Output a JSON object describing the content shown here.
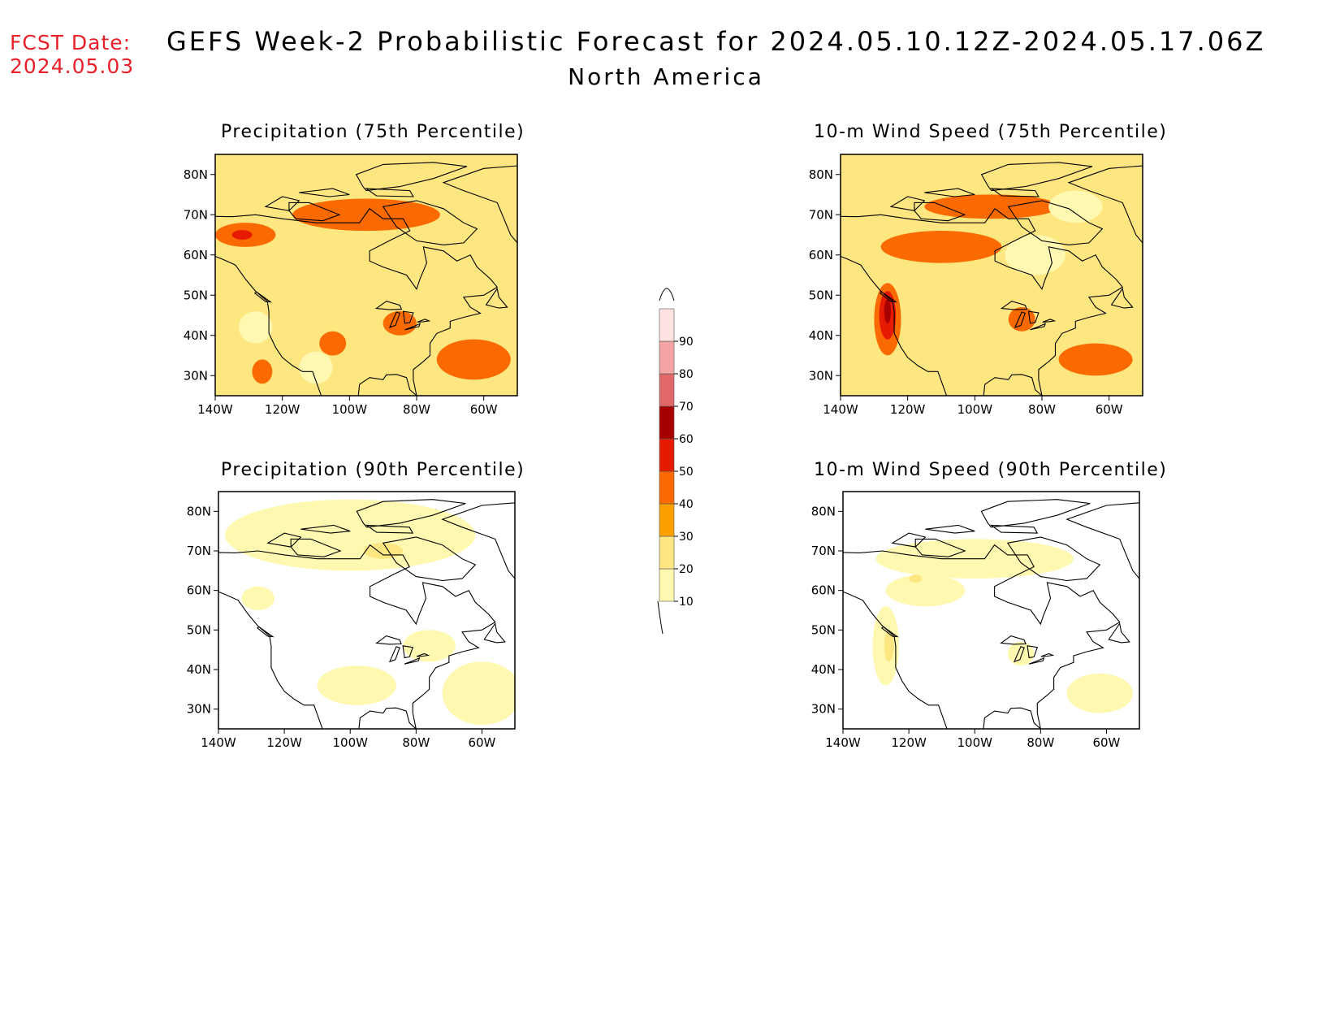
{
  "header": {
    "fcst_label": "FCST Date:",
    "fcst_date": "2024.05.03",
    "title": "GEFS Week-2 Probabilistic Forecast for 2024.05.10.12Z-2024.05.17.06Z",
    "subtitle": "North America"
  },
  "axes": {
    "lat_labels": [
      "30N",
      "40N",
      "50N",
      "60N",
      "70N",
      "80N"
    ],
    "lat_values": [
      30,
      40,
      50,
      60,
      70,
      80
    ],
    "lon_labels": [
      "140W",
      "120W",
      "100W",
      "80W",
      "60W"
    ],
    "lon_values": [
      -140,
      -120,
      -100,
      -80,
      -60
    ],
    "lat_range": [
      25,
      85
    ],
    "lon_range": [
      -140,
      -50
    ]
  },
  "panels": [
    {
      "title": "Precipitation (75th Percentile)",
      "variable": "Precipitation",
      "percentile": "75th",
      "dominant_level": 20,
      "features": [
        {
          "level": 40,
          "lon": -131,
          "lat": 65,
          "rlon": 9,
          "rlat": 3
        },
        {
          "level": 40,
          "lon": -95,
          "lat": 70,
          "rlon": 22,
          "rlat": 4
        },
        {
          "level": 40,
          "lon": -63,
          "lat": 34,
          "rlon": 11,
          "rlat": 5
        },
        {
          "level": 40,
          "lon": -105,
          "lat": 38,
          "rlon": 4,
          "rlat": 3
        },
        {
          "level": 40,
          "lon": -126,
          "lat": 31,
          "rlon": 3,
          "rlat": 3
        },
        {
          "level": 40,
          "lon": -85,
          "lat": 43,
          "rlon": 5,
          "rlat": 3
        },
        {
          "level": 50,
          "lon": -132,
          "lat": 65,
          "rlon": 3,
          "rlat": 1.2
        },
        {
          "level": 10,
          "lon": -128,
          "lat": 42,
          "rlon": 5,
          "rlat": 4
        },
        {
          "level": 10,
          "lon": -110,
          "lat": 32,
          "rlon": 5,
          "rlat": 4
        }
      ]
    },
    {
      "title": "10-m Wind Speed (75th Percentile)",
      "variable": "10-m Wind Speed",
      "percentile": "75th",
      "dominant_level": 20,
      "features": [
        {
          "level": 40,
          "lon": -110,
          "lat": 62,
          "rlon": 18,
          "rlat": 4
        },
        {
          "level": 40,
          "lon": -126,
          "lat": 44,
          "rlon": 4,
          "rlat": 9
        },
        {
          "level": 40,
          "lon": -64,
          "lat": 34,
          "rlon": 11,
          "rlat": 4
        },
        {
          "level": 40,
          "lon": -95,
          "lat": 72,
          "rlon": 20,
          "rlat": 3
        },
        {
          "level": 40,
          "lon": -86,
          "lat": 44,
          "rlon": 4,
          "rlat": 3
        },
        {
          "level": 50,
          "lon": -126,
          "lat": 45,
          "rlon": 2.5,
          "rlat": 6
        },
        {
          "level": 60,
          "lon": -126,
          "lat": 46,
          "rlon": 1,
          "rlat": 3
        },
        {
          "level": 10,
          "lon": -82,
          "lat": 60,
          "rlon": 9,
          "rlat": 5
        },
        {
          "level": 10,
          "lon": -70,
          "lat": 72,
          "rlon": 8,
          "rlat": 4
        }
      ]
    },
    {
      "title": "Precipitation (90th Percentile)",
      "variable": "Precipitation",
      "percentile": "90th",
      "dominant_level": 0,
      "features": [
        {
          "level": 10,
          "lon": -100,
          "lat": 74,
          "rlon": 38,
          "rlat": 9
        },
        {
          "level": 10,
          "lon": -60,
          "lat": 34,
          "rlon": 12,
          "rlat": 8
        },
        {
          "level": 10,
          "lon": -98,
          "lat": 36,
          "rlon": 12,
          "rlat": 5
        },
        {
          "level": 10,
          "lon": -76,
          "lat": 46,
          "rlon": 8,
          "rlat": 4
        },
        {
          "level": 10,
          "lon": -128,
          "lat": 58,
          "rlon": 5,
          "rlat": 3
        },
        {
          "level": 20,
          "lon": -90,
          "lat": 70,
          "rlon": 6,
          "rlat": 2
        }
      ]
    },
    {
      "title": "10-m Wind Speed (90th Percentile)",
      "variable": "10-m Wind Speed",
      "percentile": "90th",
      "dominant_level": 0,
      "features": [
        {
          "level": 10,
          "lon": -100,
          "lat": 68,
          "rlon": 30,
          "rlat": 5
        },
        {
          "level": 10,
          "lon": -127,
          "lat": 46,
          "rlon": 4,
          "rlat": 10
        },
        {
          "level": 10,
          "lon": -62,
          "lat": 34,
          "rlon": 10,
          "rlat": 5
        },
        {
          "level": 10,
          "lon": -86,
          "lat": 44,
          "rlon": 4,
          "rlat": 3
        },
        {
          "level": 10,
          "lon": -115,
          "lat": 60,
          "rlon": 12,
          "rlat": 4
        },
        {
          "level": 20,
          "lon": -126,
          "lat": 46,
          "rlon": 1.5,
          "rlat": 4
        },
        {
          "level": 20,
          "lon": -118,
          "lat": 63,
          "rlon": 2,
          "rlat": 1
        }
      ]
    }
  ],
  "colorbar": {
    "levels": [
      10,
      20,
      30,
      40,
      50,
      60,
      70,
      80,
      90
    ],
    "labels": [
      "10",
      "20",
      "30",
      "40",
      "50",
      "60",
      "70",
      "80",
      "90"
    ],
    "colors": [
      "#fff8b0",
      "#fee680",
      "#fca000",
      "#fb6a00",
      "#e51a00",
      "#a80000",
      "#e06868",
      "#f4a4a4",
      "#ffe3e3"
    ]
  },
  "coastline_color": "#000000"
}
